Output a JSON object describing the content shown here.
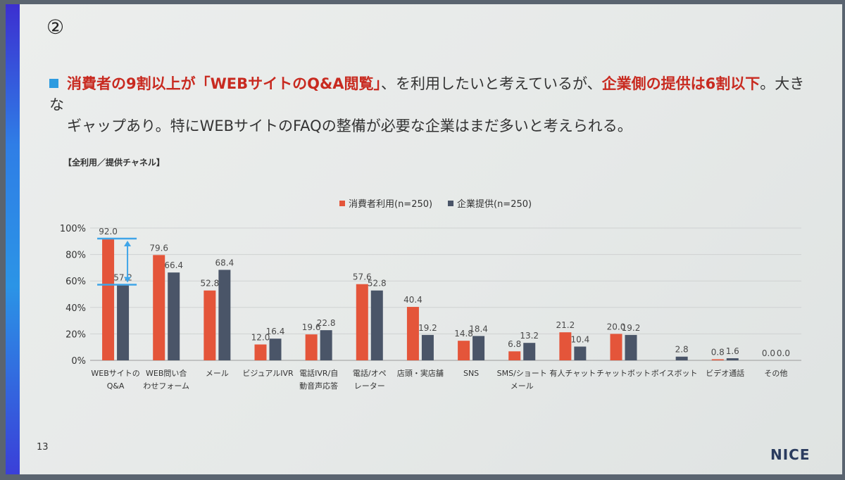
{
  "slide": {
    "number_marker": "②",
    "headline": {
      "part1": "消費者の9割以上が「WEBサイトのQ&A閲覧」",
      "part2": "、を利用したいと考えているが、",
      "part3": "企業側の提供は6割以下",
      "part4": "。大きな",
      "line2": "ギャップあり。特にWEBサイトのFAQの整備が必要な企業はまだ多いと考えられる。"
    },
    "chart_caption": "【全利用／提供チャネル】",
    "page_number": "13",
    "logo": "NICE"
  },
  "colors": {
    "consumer": "#e4553a",
    "company": "#4a5568",
    "arrow": "#3fa5e8",
    "highlight": "#c82a20"
  },
  "chart_data": {
    "type": "bar",
    "categories": [
      [
        "WEBサイトの",
        "Q&A"
      ],
      [
        "WEB問い合",
        "わせフォーム"
      ],
      [
        "メール"
      ],
      [
        "ビジュアルIVR"
      ],
      [
        "電話IVR/自",
        "動音声応答"
      ],
      [
        "電話/オペ",
        "レーター"
      ],
      [
        "店頭・実店舗"
      ],
      [
        "SNS"
      ],
      [
        "SMS/ショート",
        "メール"
      ],
      [
        "有人チャット"
      ],
      [
        "チャットボット"
      ],
      [
        "ボイスボット"
      ],
      [
        "ビデオ通話"
      ],
      [
        "その他"
      ]
    ],
    "series": [
      {
        "name": "消費者利用(n=250)",
        "values": [
          92.0,
          79.6,
          52.8,
          12.0,
          19.6,
          57.6,
          40.4,
          14.8,
          6.8,
          21.2,
          20.0,
          null,
          0.8,
          0.0
        ],
        "labels": [
          "92.0",
          "79.6",
          "52.8",
          "12.0",
          "19.6",
          "57.6",
          "40.4",
          "14.8",
          "6.8",
          "21.2",
          "20.0",
          "",
          "0.8",
          "0.0"
        ]
      },
      {
        "name": "企業提供(n=250)",
        "values": [
          57.2,
          66.4,
          68.4,
          16.4,
          22.8,
          52.8,
          19.2,
          18.4,
          13.2,
          10.4,
          19.2,
          2.8,
          1.6,
          0.0
        ],
        "labels": [
          "57.2",
          "66.4",
          "68.4",
          "16.4",
          "22.8",
          "52.8",
          "19.2",
          "18.4",
          "13.2",
          "10.4",
          "19.2",
          "2.8",
          "1.6",
          "0.0"
        ]
      }
    ],
    "y_ticks": [
      "0%",
      "20%",
      "40%",
      "60%",
      "80%",
      "100%"
    ],
    "ylim": [
      0,
      100
    ],
    "grid": true,
    "legend_placement": "top-center",
    "annotation": {
      "type": "gap-arrow",
      "category_index": 0,
      "from": 57.2,
      "to": 92.0
    }
  }
}
